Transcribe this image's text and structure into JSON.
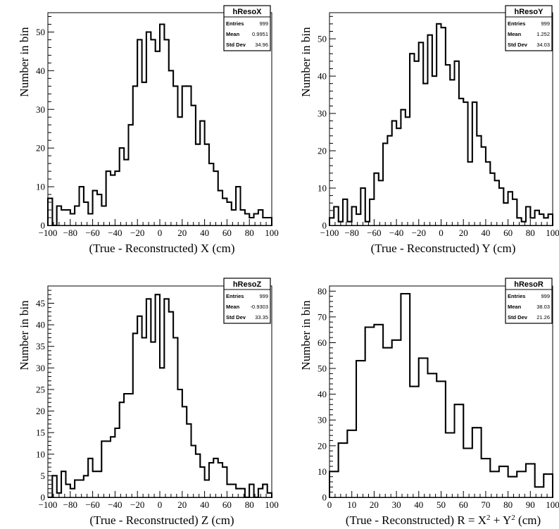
{
  "chart_data": [
    {
      "type": "bar",
      "histogram_name": "hResoX",
      "stats": {
        "entries_label": "Entries",
        "entries": "999",
        "mean_label": "Mean",
        "mean": "0.9951",
        "std_label": "Std Dev",
        "std": "34.96"
      },
      "xlabel": "(True - Reconstructed) X (cm)",
      "ylabel": "Number in bin",
      "xlim": [
        -100,
        100
      ],
      "ylim": [
        0,
        55
      ],
      "x_ticks": [
        -100,
        -80,
        -60,
        -40,
        -20,
        0,
        20,
        40,
        60,
        80,
        100
      ],
      "y_ticks": [
        10,
        20,
        30,
        40,
        50
      ],
      "bin_width": 4,
      "values": [
        7,
        0,
        5,
        4,
        4,
        3,
        5,
        10,
        6,
        3,
        9,
        8,
        5,
        14,
        13,
        14,
        20,
        17,
        26,
        36,
        48,
        37,
        50,
        48,
        45,
        52,
        48,
        40,
        36,
        28,
        36,
        36,
        31,
        21,
        27,
        21,
        16,
        14,
        9,
        7,
        6,
        4,
        10,
        4,
        3,
        2,
        3,
        4,
        2,
        2
      ]
    },
    {
      "type": "bar",
      "histogram_name": "hResoY",
      "stats": {
        "entries_label": "Entries",
        "entries": "999",
        "mean_label": "Mean",
        "mean": "1.252",
        "std_label": "Std Dev",
        "std": "34.03"
      },
      "xlabel": "(True - Reconstructed) Y (cm)",
      "ylabel": "Number in bin",
      "xlim": [
        -100,
        100
      ],
      "ylim": [
        0,
        57
      ],
      "x_ticks": [
        -100,
        -80,
        -60,
        -40,
        -20,
        0,
        20,
        40,
        60,
        80,
        100
      ],
      "y_ticks": [
        10,
        20,
        30,
        40,
        50
      ],
      "bin_width": 4,
      "values": [
        2,
        5,
        1,
        7,
        1,
        5,
        3,
        10,
        1,
        7,
        14,
        12,
        22,
        24,
        28,
        26,
        31,
        29,
        46,
        44,
        49,
        38,
        51,
        40,
        54,
        53,
        43,
        39,
        44,
        34,
        33,
        17,
        33,
        24,
        21,
        17,
        14,
        12,
        10,
        6,
        9,
        7,
        2,
        1,
        5,
        2,
        4,
        3,
        2,
        3
      ]
    },
    {
      "type": "bar",
      "histogram_name": "hResoZ",
      "stats": {
        "entries_label": "Entries",
        "entries": "999",
        "mean_label": "Mean",
        "mean": "-0.9303",
        "std_label": "Std Dev",
        "std": "33.35"
      },
      "xlabel": "(True - Reconstructed) Z (cm)",
      "ylabel": "Number in bin",
      "xlim": [
        -100,
        100
      ],
      "ylim": [
        0,
        49
      ],
      "x_ticks": [
        -100,
        -80,
        -60,
        -40,
        -20,
        0,
        20,
        40,
        60,
        80,
        100
      ],
      "y_ticks": [
        5,
        10,
        15,
        20,
        25,
        30,
        35,
        40,
        45
      ],
      "bin_width": 4,
      "values": [
        0,
        5,
        1,
        6,
        3,
        2,
        4,
        4,
        5,
        9,
        6,
        6,
        13,
        13,
        14,
        16,
        22,
        24,
        24,
        38,
        42,
        37,
        46,
        36,
        47,
        30,
        46,
        43,
        37,
        25,
        21,
        17,
        12,
        10,
        7,
        4,
        8,
        9,
        8,
        7,
        3,
        3,
        2,
        2,
        0,
        3,
        0,
        2,
        3,
        1
      ]
    },
    {
      "type": "bar",
      "histogram_name": "hResoR",
      "stats": {
        "entries_label": "Entries",
        "entries": "999",
        "mean_label": "Mean",
        "mean": "38.03",
        "std_label": "Std Dev",
        "std": "21.26"
      },
      "xlabel": "(True - Reconstructed) R = X",
      "xlabel_sup1": "2",
      "xlabel_mid": " + Y",
      "xlabel_sup2": "2",
      "xlabel_end": " (cm)",
      "ylabel": "Number in bin",
      "xlim": [
        0,
        100
      ],
      "ylim": [
        0,
        82
      ],
      "x_ticks": [
        0,
        10,
        20,
        30,
        40,
        50,
        60,
        70,
        80,
        90,
        100
      ],
      "y_ticks": [
        10,
        20,
        30,
        40,
        50,
        60,
        70,
        80
      ],
      "bin_width": 4,
      "values": [
        10,
        21,
        26,
        53,
        66,
        67,
        58,
        61,
        79,
        43,
        54,
        48,
        45,
        25,
        36,
        19,
        27,
        15,
        10,
        12,
        8,
        10,
        13,
        4,
        9
      ]
    }
  ]
}
